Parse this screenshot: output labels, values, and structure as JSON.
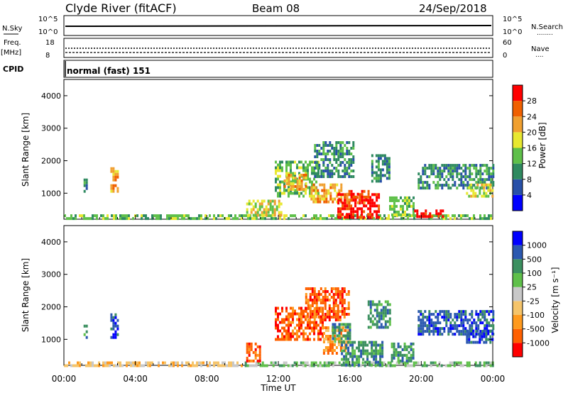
{
  "header": {
    "station": "Clyde River (fitACF)",
    "beam": "Beam 08",
    "date": "24/Sep/2018"
  },
  "sky_panel": {
    "left_label": "N.Sky",
    "right_label": "N.Search",
    "right_marker": "........",
    "left_ticks": [
      "10^5",
      "10^0"
    ],
    "right_ticks": [
      "10^5",
      "10^0"
    ]
  },
  "freq_panel": {
    "left_label_1": "Freq.",
    "left_label_2": "[MHz]",
    "right_label": "Nave",
    "right_marker": "....",
    "left_ticks": [
      "18",
      "8"
    ],
    "right_ticks": [
      "60",
      "0"
    ]
  },
  "cpid": {
    "label": "CPID",
    "value": "normal (fast) 151"
  },
  "x_axis": {
    "label": "Time UT",
    "ticks": [
      "00:00",
      "04:00",
      "08:00",
      "12:00",
      "16:00",
      "20:00",
      "00:00"
    ]
  },
  "colors": {
    "power": [
      "#0000ff",
      "#2850a8",
      "#2f8a60",
      "#5fc04a",
      "#e8e830",
      "#f0a030",
      "#f06000",
      "#ff0000"
    ],
    "velocity": [
      "#ff0000",
      "#ff6000",
      "#ff9a1e",
      "#f5c46a",
      "#c8c8c8",
      "#5fc04a",
      "#3c9060",
      "#2b58b0",
      "#0000ff"
    ]
  },
  "chart_data": [
    {
      "type": "heatmap",
      "name": "power",
      "ylabel": "Slant Range [km]",
      "xlabel": "",
      "xlim": [
        0,
        24
      ],
      "ylim": [
        200,
        4500
      ],
      "yticks": [
        1000,
        2000,
        3000,
        4000
      ],
      "colorbar": {
        "label": "Power [dB]",
        "ticks": [
          "4",
          "8",
          "12",
          "16",
          "20",
          "24",
          "28"
        ],
        "range": [
          0,
          32
        ]
      },
      "regions": [
        {
          "t0": 0,
          "t1": 24,
          "r0": 180,
          "r1": 350,
          "level": 3
        },
        {
          "t0": 1.1,
          "t1": 1.3,
          "r0": 1050,
          "r1": 1450,
          "level": 2
        },
        {
          "t0": 2.6,
          "t1": 3.0,
          "r0": 1100,
          "r1": 1800,
          "level": 5
        },
        {
          "t0": 10.2,
          "t1": 12.2,
          "r0": 350,
          "r1": 800,
          "level": 4
        },
        {
          "t0": 11.8,
          "t1": 14.2,
          "r0": 900,
          "r1": 2000,
          "level": 3
        },
        {
          "t0": 12.3,
          "t1": 13.5,
          "r0": 1100,
          "r1": 1600,
          "level": 5
        },
        {
          "t0": 13.8,
          "t1": 15.5,
          "r0": 700,
          "r1": 1300,
          "level": 5
        },
        {
          "t0": 14.0,
          "t1": 16.2,
          "r0": 1500,
          "r1": 2600,
          "level": 2
        },
        {
          "t0": 15.3,
          "t1": 17.6,
          "r0": 300,
          "r1": 1000,
          "level": 7
        },
        {
          "t0": 15.8,
          "t1": 17.0,
          "r0": 700,
          "r1": 1100,
          "level": 6
        },
        {
          "t0": 17.2,
          "t1": 18.2,
          "r0": 1400,
          "r1": 2200,
          "level": 2
        },
        {
          "t0": 18.2,
          "t1": 19.6,
          "r0": 300,
          "r1": 900,
          "level": 3
        },
        {
          "t0": 19.6,
          "t1": 21.2,
          "r0": 250,
          "r1": 500,
          "level": 7
        },
        {
          "t0": 19.8,
          "t1": 24.0,
          "r0": 1200,
          "r1": 1900,
          "level": 2
        },
        {
          "t0": 22.5,
          "t1": 24.0,
          "r0": 950,
          "r1": 1300,
          "level": 4
        }
      ]
    },
    {
      "type": "heatmap",
      "name": "velocity",
      "ylabel": "Slant Range [km]",
      "xlabel": "Time UT",
      "xlim": [
        0,
        24
      ],
      "ylim": [
        200,
        4500
      ],
      "yticks": [
        1000,
        2000,
        3000,
        4000
      ],
      "colorbar": {
        "label": "Velocity [m s⁻¹]",
        "ticks": [
          "-1000",
          "-500",
          "-100",
          "-25",
          "25",
          "100",
          "500",
          "1000"
        ]
      },
      "regions": [
        {
          "t0": 0,
          "t1": 10.0,
          "r0": 180,
          "r1": 320,
          "level": 3
        },
        {
          "t0": 10.0,
          "t1": 24,
          "r0": 180,
          "r1": 320,
          "level": 5
        },
        {
          "t0": 1.1,
          "t1": 1.3,
          "r0": 1050,
          "r1": 1450,
          "level": 6
        },
        {
          "t0": 2.6,
          "t1": 3.0,
          "r0": 1100,
          "r1": 1800,
          "level": 7
        },
        {
          "t0": 10.2,
          "t1": 11.0,
          "r0": 350,
          "r1": 900,
          "level": 1
        },
        {
          "t0": 11.8,
          "t1": 14.5,
          "r0": 1000,
          "r1": 2000,
          "level": 1
        },
        {
          "t0": 13.5,
          "t1": 16.0,
          "r0": 1600,
          "r1": 2600,
          "level": 1
        },
        {
          "t0": 14.5,
          "t1": 16.0,
          "r0": 600,
          "r1": 1400,
          "level": 2
        },
        {
          "t0": 15.0,
          "t1": 16.0,
          "r0": 900,
          "r1": 1500,
          "level": 6
        },
        {
          "t0": 15.5,
          "t1": 17.8,
          "r0": 250,
          "r1": 950,
          "level": 6
        },
        {
          "t0": 17.0,
          "t1": 18.2,
          "r0": 1400,
          "r1": 2200,
          "level": 6
        },
        {
          "t0": 18.3,
          "t1": 19.6,
          "r0": 300,
          "r1": 900,
          "level": 6
        },
        {
          "t0": 19.8,
          "t1": 24.0,
          "r0": 1200,
          "r1": 1900,
          "level": 7
        },
        {
          "t0": 22.5,
          "t1": 24.0,
          "r0": 950,
          "r1": 1300,
          "level": 7
        }
      ]
    }
  ]
}
